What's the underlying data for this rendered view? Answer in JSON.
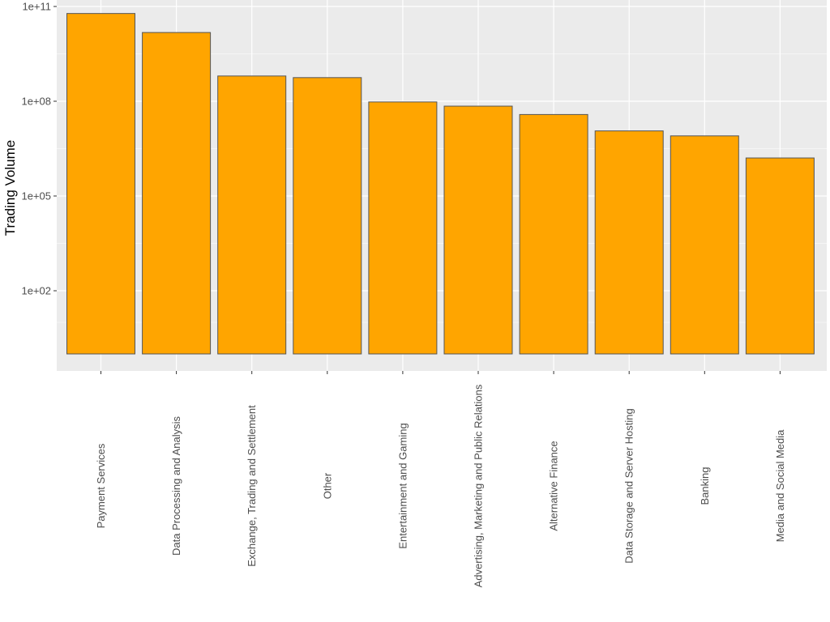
{
  "chart_data": {
    "type": "bar",
    "title": "",
    "xlabel": "",
    "ylabel": "Trading Volume",
    "yscale": "log10",
    "ylim": [
      1,
      100000000000
    ],
    "y_ticks": [
      100,
      100000,
      100000000,
      100000000000
    ],
    "y_tick_labels": [
      "1e+02",
      "1e+05",
      "1e+08",
      "1e+11"
    ],
    "categories": [
      "Payment Services",
      "Data Processing and Analysis",
      "Exchange, Trading and Settlement",
      "Other",
      "Entertainment and Gaming",
      "Advertising, Marketing and Public Relations",
      "Alternative Finance",
      "Data Storage and Server Hosting",
      "Banking",
      "Media and Social Media"
    ],
    "values": [
      60000000000,
      15000000000,
      630000000,
      560000000,
      95000000,
      70000000,
      38000000,
      11500000,
      8000000,
      1600000
    ],
    "bar_color": "#FFA500",
    "bar_border_color": "#555555",
    "panel_background": "#EBEBEB",
    "grid": true,
    "legend": "none"
  }
}
